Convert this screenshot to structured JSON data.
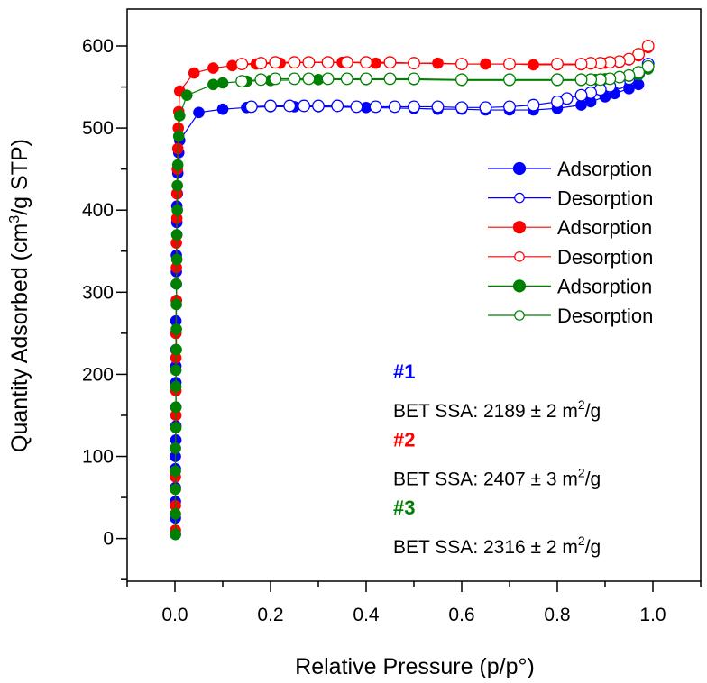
{
  "chart_data": {
    "type": "scatter",
    "xlabel": "Relative Pressure (p/p°)",
    "ylabel_parts": [
      "Quantity Adsorbed (cm",
      "3",
      "/g STP)"
    ],
    "xlim": [
      -0.1,
      1.1
    ],
    "ylim": [
      -52,
      645
    ],
    "xticks": [
      "0.0",
      "0.2",
      "0.4",
      "0.6",
      "0.8",
      "1.0"
    ],
    "xtick_values": [
      0,
      0.2,
      0.4,
      0.6,
      0.8,
      1.0
    ],
    "yticks": [
      "0",
      "100",
      "200",
      "300",
      "400",
      "500",
      "600"
    ],
    "ytick_values": [
      0,
      100,
      200,
      300,
      400,
      500,
      600
    ],
    "grid": false,
    "legend_position": "right",
    "series": [
      {
        "name": "Adsorption",
        "color": "#0000ff",
        "filled": true,
        "x": [
          0.001,
          0.001,
          0.001,
          0.001,
          0.001,
          0.001,
          0.002,
          0.002,
          0.002,
          0.002,
          0.002,
          0.002,
          0.002,
          0.002,
          0.003,
          0.003,
          0.003,
          0.003,
          0.004,
          0.004,
          0.004,
          0.005,
          0.006,
          0.008,
          0.01,
          0.05,
          0.1,
          0.15,
          0.2,
          0.25,
          0.3,
          0.4,
          0.5,
          0.55,
          0.6,
          0.65,
          0.7,
          0.75,
          0.8,
          0.85,
          0.87,
          0.9,
          0.92,
          0.95,
          0.97,
          0.99
        ],
        "y": [
          5,
          25,
          45,
          62,
          85,
          100,
          120,
          137,
          160,
          190,
          210,
          230,
          250,
          265,
          290,
          310,
          325,
          345,
          370,
          385,
          405,
          420,
          445,
          470,
          485,
          519,
          523,
          525,
          526,
          526,
          526,
          525,
          524,
          523,
          523,
          522,
          522,
          522,
          524,
          528,
          532,
          538,
          542,
          548,
          553,
          578
        ]
      },
      {
        "name": "Desorption",
        "color": "#0000ff",
        "filled": false,
        "x": [
          0.99,
          0.97,
          0.95,
          0.93,
          0.91,
          0.89,
          0.87,
          0.85,
          0.82,
          0.8,
          0.75,
          0.7,
          0.65,
          0.6,
          0.55,
          0.5,
          0.46,
          0.42,
          0.38,
          0.34,
          0.3,
          0.27,
          0.24,
          0.2,
          0.16
        ],
        "y": [
          578,
          566,
          560,
          555,
          551,
          547,
          543,
          540,
          536,
          532,
          528,
          526,
          525,
          525,
          526,
          526,
          526,
          526,
          526,
          527,
          527,
          527,
          527,
          527,
          526
        ]
      },
      {
        "name": "Adsorption",
        "color": "#ff0000",
        "filled": true,
        "x": [
          0.001,
          0.001,
          0.001,
          0.001,
          0.002,
          0.002,
          0.002,
          0.002,
          0.003,
          0.003,
          0.003,
          0.004,
          0.004,
          0.005,
          0.006,
          0.007,
          0.008,
          0.01,
          0.04,
          0.08,
          0.12,
          0.17,
          0.22,
          0.28,
          0.35,
          0.42,
          0.5,
          0.55,
          0.6,
          0.65,
          0.7,
          0.75,
          0.8,
          0.85,
          0.87,
          0.9,
          0.93,
          0.95,
          0.97,
          0.99
        ],
        "y": [
          10,
          40,
          75,
          110,
          150,
          180,
          220,
          250,
          290,
          330,
          360,
          390,
          420,
          450,
          475,
          500,
          520,
          545,
          567,
          573,
          576,
          578,
          579,
          580,
          580,
          579,
          579,
          579,
          578,
          578,
          578,
          577,
          577,
          577,
          578,
          579,
          580,
          583,
          588,
          598
        ]
      },
      {
        "name": "Desorption",
        "color": "#ff0000",
        "filled": false,
        "x": [
          0.99,
          0.97,
          0.95,
          0.93,
          0.91,
          0.89,
          0.87,
          0.85,
          0.8,
          0.7,
          0.6,
          0.5,
          0.45,
          0.4,
          0.36,
          0.32,
          0.28,
          0.25,
          0.21,
          0.18,
          0.14
        ],
        "y": [
          600,
          590,
          584,
          581,
          580,
          579,
          579,
          578,
          578,
          578,
          578,
          579,
          580,
          580,
          580,
          580,
          580,
          580,
          580,
          579,
          578
        ]
      },
      {
        "name": "Adsorption",
        "color": "#008000",
        "filled": true,
        "x": [
          0.001,
          0.001,
          0.001,
          0.001,
          0.001,
          0.002,
          0.002,
          0.002,
          0.002,
          0.003,
          0.003,
          0.003,
          0.003,
          0.004,
          0.004,
          0.005,
          0.005,
          0.006,
          0.008,
          0.01,
          0.025,
          0.08,
          0.1,
          0.15,
          0.2,
          0.3,
          0.4,
          0.5,
          0.6,
          0.7,
          0.8,
          0.85,
          0.88,
          0.9,
          0.93,
          0.95,
          0.97,
          0.99
        ],
        "y": [
          5,
          30,
          60,
          82,
          110,
          135,
          160,
          185,
          205,
          230,
          255,
          285,
          310,
          340,
          370,
          400,
          430,
          455,
          490,
          515,
          540,
          553,
          555,
          557,
          558,
          559,
          559,
          559,
          558,
          558,
          558,
          558,
          559,
          560,
          562,
          563,
          565,
          572
        ]
      },
      {
        "name": "Desorption",
        "color": "#008000",
        "filled": false,
        "x": [
          0.99,
          0.97,
          0.95,
          0.93,
          0.91,
          0.89,
          0.87,
          0.85,
          0.8,
          0.7,
          0.6,
          0.5,
          0.45,
          0.4,
          0.36,
          0.32,
          0.28,
          0.25,
          0.21,
          0.18,
          0.14
        ],
        "y": [
          575,
          568,
          564,
          562,
          560,
          559,
          559,
          559,
          559,
          559,
          559,
          560,
          560,
          560,
          560,
          560,
          560,
          560,
          560,
          559,
          557
        ]
      }
    ],
    "annotations": [
      {
        "label": "#1",
        "color": "#0000ff",
        "text_parts": [
          "BET SSA: 2189 ± 2 m",
          "2",
          "/g"
        ]
      },
      {
        "label": "#2",
        "color": "#ff0000",
        "text_parts": [
          "BET SSA: 2407 ± 3 m",
          "2",
          "/g"
        ]
      },
      {
        "label": "#3",
        "color": "#008000",
        "text_parts": [
          "BET SSA: 2316 ± 2 m",
          "2",
          "/g"
        ]
      }
    ]
  }
}
